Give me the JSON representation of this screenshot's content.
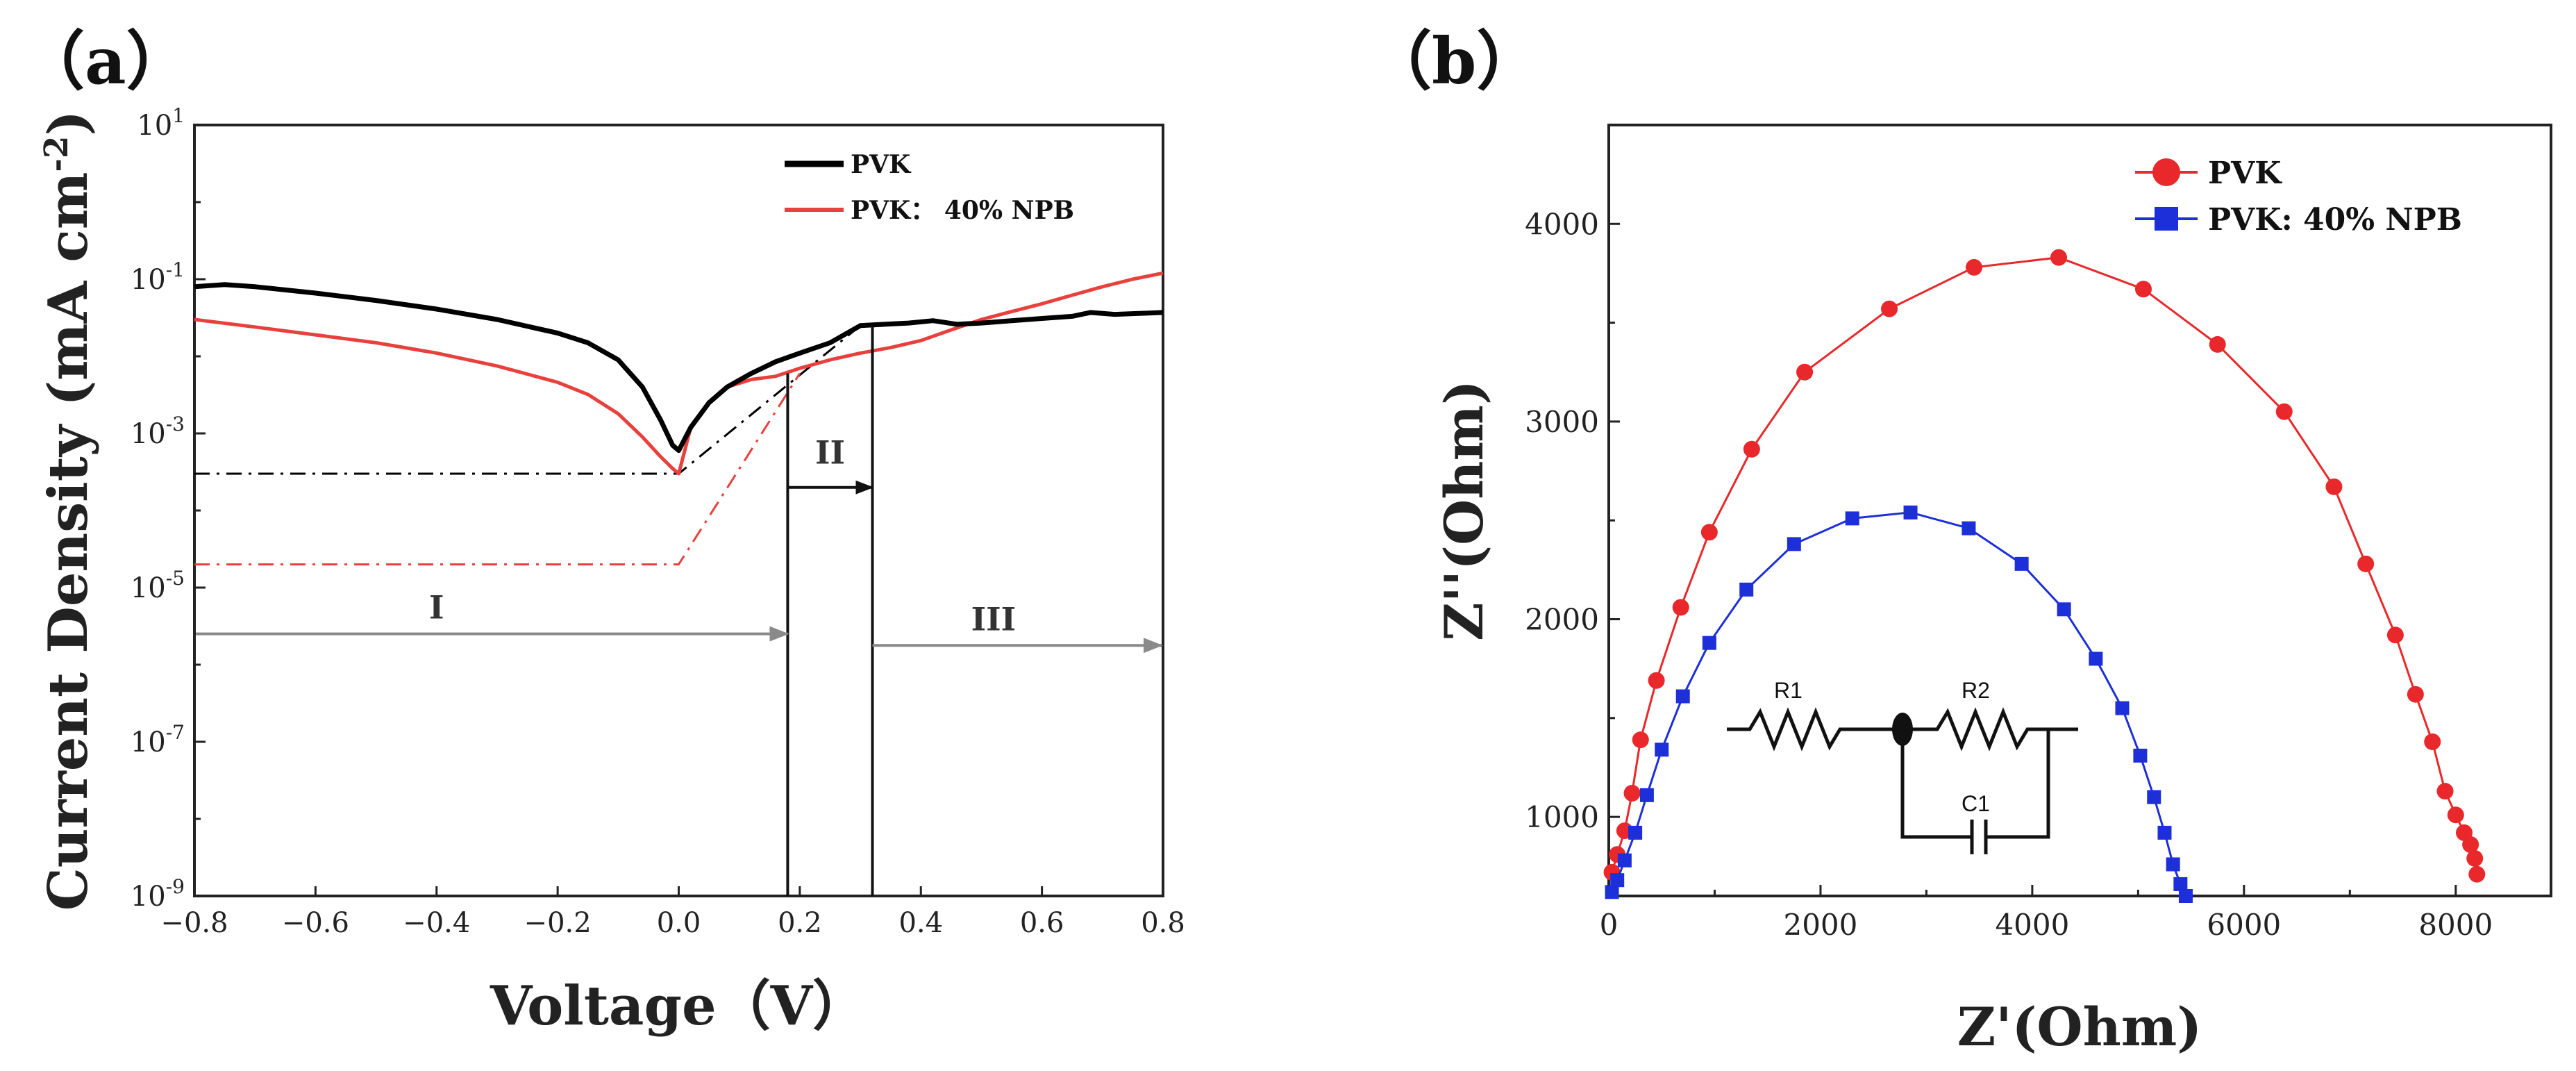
{
  "panels": {
    "a": {
      "label": "（a）",
      "xlabel": "Voltage（V）",
      "ylabel_main": "Current Density (mA cm",
      "ylabel_exp": "-2",
      "ylabel_close": ")",
      "xticks": [
        "-0.8",
        "-0.6",
        "-0.4",
        "-0.2",
        "0.0",
        "0.2",
        "0.4",
        "0.6",
        "0.8"
      ],
      "yticks": [
        {
          "base": "10",
          "exp": "1"
        },
        {
          "base": "10",
          "exp": "-1"
        },
        {
          "base": "10",
          "exp": "-3"
        },
        {
          "base": "10",
          "exp": "-5"
        },
        {
          "base": "10",
          "exp": "-7"
        },
        {
          "base": "10",
          "exp": "-9"
        }
      ],
      "legend": [
        "PVK",
        "PVK：  40% NPB"
      ],
      "regions": [
        "I",
        "II",
        "III"
      ]
    },
    "b": {
      "label": "（b）",
      "xlabel": "Z'(Ohm)",
      "ylabel": "Z''(Ohm)",
      "xticks": [
        "0",
        "2000",
        "4000",
        "6000",
        "8000"
      ],
      "yticks": [
        "1000",
        "2000",
        "3000",
        "4000"
      ],
      "legend": [
        "PVK",
        "PVK: 40% NPB"
      ],
      "circuit": {
        "r1": "R1",
        "r2": "R2",
        "c1": "C1"
      }
    }
  },
  "colors": {
    "pvk_a": "#000000",
    "npb_a": "#e8403c",
    "pvk_b": "#e8282a",
    "npb_b": "#1c2fd8",
    "arrow": "#8a8a8a"
  },
  "chart_data": [
    {
      "type": "line",
      "title": "",
      "xlabel": "Voltage（V）",
      "ylabel": "Current Density (mA cm-2)",
      "xlim": [
        -0.8,
        0.8
      ],
      "ylim_log10": [
        -9,
        1
      ],
      "series": [
        {
          "name": "PVK",
          "x": [
            -0.8,
            -0.75,
            -0.7,
            -0.6,
            -0.5,
            -0.4,
            -0.3,
            -0.2,
            -0.15,
            -0.1,
            -0.06,
            -0.03,
            -0.01,
            0.0,
            0.02,
            0.05,
            0.08,
            0.12,
            0.16,
            0.2,
            0.25,
            0.3,
            0.34,
            0.38,
            0.42,
            0.46,
            0.5,
            0.55,
            0.6,
            0.65,
            0.68,
            0.72,
            0.76,
            0.8
          ],
          "y": [
            0.08,
            0.085,
            0.08,
            0.066,
            0.053,
            0.041,
            0.03,
            0.02,
            0.015,
            0.009,
            0.004,
            0.0015,
            0.0007,
            0.0006,
            0.0012,
            0.0025,
            0.004,
            0.006,
            0.0085,
            0.011,
            0.015,
            0.025,
            0.026,
            0.027,
            0.029,
            0.026,
            0.027,
            0.029,
            0.031,
            0.033,
            0.037,
            0.035,
            0.036,
            0.037
          ]
        },
        {
          "name": "PVK：  40% NPB",
          "x": [
            -0.8,
            -0.7,
            -0.6,
            -0.5,
            -0.4,
            -0.3,
            -0.2,
            -0.15,
            -0.1,
            -0.06,
            -0.03,
            -0.01,
            0.0,
            0.02,
            0.05,
            0.08,
            0.12,
            0.16,
            0.2,
            0.25,
            0.3,
            0.35,
            0.4,
            0.45,
            0.5,
            0.55,
            0.6,
            0.65,
            0.7,
            0.75,
            0.8
          ],
          "y": [
            0.03,
            0.024,
            0.019,
            0.015,
            0.011,
            0.0075,
            0.0046,
            0.0032,
            0.0018,
            0.0009,
            0.0005,
            0.00035,
            0.0003,
            0.0012,
            0.0025,
            0.004,
            0.005,
            0.0055,
            0.007,
            0.009,
            0.011,
            0.013,
            0.016,
            0.022,
            0.03,
            0.038,
            0.048,
            0.062,
            0.08,
            0.1,
            0.12
          ]
        },
        {
          "name": "PVK fit (dash-dot)",
          "x": [
            -0.8,
            0.0,
            0.3
          ],
          "y": [
            0.0003,
            0.0003,
            0.025
          ]
        },
        {
          "name": "PVK：  40% NPB fit (dash-dot)",
          "x": [
            -0.8,
            0.0,
            0.2
          ],
          "y": [
            2e-05,
            2e-05,
            0.006
          ]
        }
      ],
      "boundaries": [
        0.18,
        0.32
      ],
      "region_labels": [
        "I",
        "II",
        "III"
      ]
    },
    {
      "type": "scatter",
      "title": "",
      "xlabel": "Z'(Ohm)",
      "ylabel": "Z''(Ohm)",
      "xlim": [
        0,
        8900
      ],
      "ylim": [
        600,
        4500
      ],
      "series": [
        {
          "name": "PVK",
          "x": [
            30,
            80,
            150,
            220,
            300,
            450,
            680,
            950,
            1350,
            1850,
            2650,
            3450,
            4250,
            5050,
            5750,
            6380,
            6850,
            7150,
            7430,
            7620,
            7780,
            7900,
            8000,
            8080,
            8140,
            8180,
            8200
          ],
          "y": [
            720,
            810,
            930,
            1120,
            1390,
            1690,
            2060,
            2440,
            2860,
            3250,
            3570,
            3780,
            3830,
            3670,
            3390,
            3050,
            2670,
            2280,
            1920,
            1620,
            1380,
            1130,
            1010,
            920,
            860,
            790,
            710
          ]
        },
        {
          "name": "PVK: 40% NPB",
          "x": [
            30,
            80,
            150,
            250,
            360,
            500,
            700,
            950,
            1300,
            1750,
            2300,
            2850,
            3400,
            3900,
            4300,
            4600,
            4850,
            5020,
            5150,
            5250,
            5330,
            5400,
            5450
          ],
          "y": [
            620,
            680,
            780,
            920,
            1110,
            1340,
            1610,
            1880,
            2150,
            2380,
            2510,
            2540,
            2460,
            2280,
            2050,
            1800,
            1550,
            1310,
            1100,
            920,
            760,
            660,
            600
          ]
        }
      ]
    }
  ]
}
